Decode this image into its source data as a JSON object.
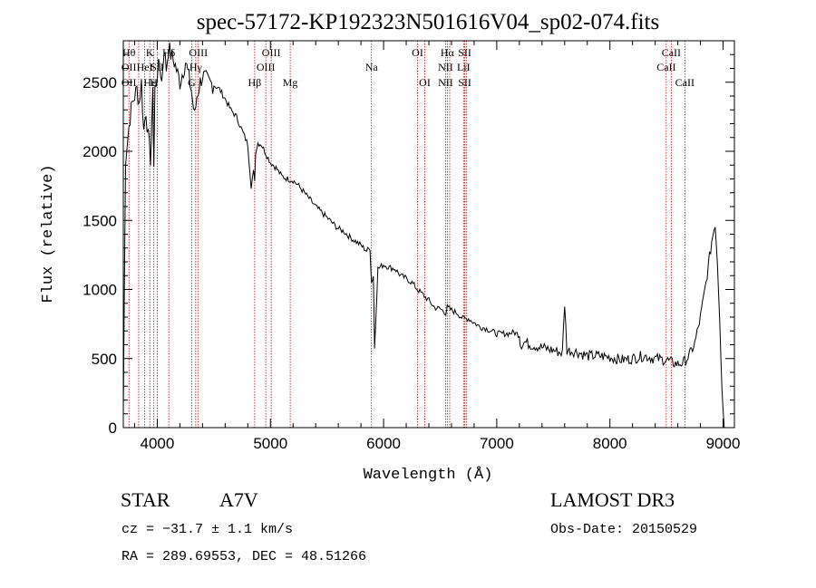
{
  "chart_data": {
    "type": "line",
    "title": "spec-57172-KP192323N501616V04_sp02-074.fits",
    "xlabel": "Wavelength (Å)",
    "ylabel": "Flux (relative)",
    "xlim": [
      3700,
      9100
    ],
    "ylim": [
      0,
      2800
    ],
    "xticks": [
      4000,
      5000,
      6000,
      7000,
      8000,
      9000
    ],
    "yticks": [
      0,
      500,
      1000,
      1500,
      2000,
      2500
    ],
    "series": [
      {
        "name": "spectrum",
        "x": [
          3700,
          3720,
          3740,
          3760,
          3780,
          3800,
          3820,
          3840,
          3860,
          3880,
          3900,
          3920,
          3940,
          3960,
          3970,
          3980,
          4000,
          4020,
          4040,
          4060,
          4080,
          4100,
          4120,
          4150,
          4200,
          4250,
          4300,
          4330,
          4350,
          4380,
          4400,
          4450,
          4500,
          4550,
          4600,
          4650,
          4700,
          4750,
          4800,
          4830,
          4850,
          4861,
          4870,
          4890,
          4920,
          4950,
          5000,
          5050,
          5100,
          5150,
          5200,
          5250,
          5300,
          5350,
          5400,
          5450,
          5500,
          5550,
          5600,
          5650,
          5700,
          5750,
          5800,
          5850,
          5880,
          5893,
          5910,
          5920,
          5950,
          6000,
          6050,
          6100,
          6150,
          6200,
          6250,
          6300,
          6350,
          6400,
          6450,
          6500,
          6550,
          6563,
          6600,
          6650,
          6700,
          6750,
          6800,
          6850,
          6900,
          6950,
          7000,
          7050,
          7100,
          7150,
          7200,
          7210,
          7250,
          7300,
          7400,
          7500,
          7580,
          7600,
          7620,
          7700,
          7800,
          7900,
          8000,
          8100,
          8200,
          8300,
          8400,
          8500,
          8550,
          8600,
          8650,
          8700,
          8750,
          8800,
          8850,
          8900,
          8930,
          8950,
          8970,
          8990,
          9010,
          9030
        ],
        "y": [
          100,
          1950,
          2100,
          2250,
          2350,
          2400,
          2450,
          2350,
          2500,
          2150,
          2300,
          2100,
          1950,
          2400,
          1900,
          2450,
          2550,
          2650,
          2500,
          2750,
          2600,
          2750,
          2700,
          2650,
          2500,
          2650,
          2450,
          2250,
          2400,
          2500,
          2550,
          2500,
          2480,
          2450,
          2380,
          2300,
          2250,
          2150,
          2050,
          1750,
          1850,
          1800,
          2000,
          2060,
          2050,
          2000,
          1920,
          1880,
          1820,
          1800,
          1790,
          1750,
          1700,
          1650,
          1600,
          1560,
          1520,
          1480,
          1440,
          1420,
          1380,
          1350,
          1320,
          1280,
          1300,
          1050,
          1100,
          580,
          1150,
          1180,
          1160,
          1150,
          1100,
          1080,
          1050,
          1000,
          960,
          920,
          870,
          860,
          830,
          870,
          850,
          830,
          790,
          790,
          760,
          730,
          720,
          700,
          680,
          680,
          680,
          690,
          670,
          600,
          620,
          600,
          580,
          560,
          540,
          900,
          560,
          550,
          520,
          520,
          510,
          490,
          500,
          520,
          500,
          490,
          470,
          460,
          470,
          520,
          610,
          800,
          1050,
          1350,
          1480,
          1200,
          800,
          300,
          0,
          0
        ]
      }
    ],
    "lines": [
      {
        "w": 3750,
        "labels": [
          [
            "Hθ",
            1
          ],
          [
            "OII",
            2
          ],
          [
            "OII",
            3
          ]
        ]
      },
      {
        "w": 3836
      },
      {
        "w": 3889,
        "labels": [
          [
            "HeI",
            2
          ]
        ]
      },
      {
        "w": 3934,
        "labels": [
          [
            "K",
            1
          ],
          [
            "Hε",
            3
          ]
        ]
      },
      {
        "w": 3970,
        "labels": [
          [
            "H",
            3
          ]
        ]
      },
      {
        "w": 4000,
        "labels": [
          [
            "SII",
            2
          ]
        ]
      },
      {
        "w": 4102,
        "labels": [
          [
            "Hδ",
            1
          ]
        ]
      },
      {
        "w": 4304,
        "labels": [
          [
            "G",
            3
          ]
        ]
      },
      {
        "w": 4340,
        "labels": [
          [
            "Hγ",
            2
          ]
        ]
      },
      {
        "w": 4363,
        "labels": [
          [
            "OIII",
            1
          ]
        ]
      },
      {
        "w": 4861,
        "labels": [
          [
            "Hβ",
            3
          ]
        ]
      },
      {
        "w": 4959,
        "labels": [
          [
            "OIII",
            2
          ]
        ]
      },
      {
        "w": 5007,
        "labels": [
          [
            "OIII",
            1
          ]
        ]
      },
      {
        "w": 5175,
        "labels": [
          [
            "Mg",
            3
          ]
        ]
      },
      {
        "w": 5893,
        "labels": [
          [
            "Na",
            2
          ]
        ]
      },
      {
        "w": 6300,
        "labels": [
          [
            "OI",
            1
          ]
        ]
      },
      {
        "w": 6364,
        "labels": [
          [
            "OI",
            3
          ]
        ]
      },
      {
        "w": 6548,
        "labels": [
          [
            "NII",
            2
          ],
          [
            "NII",
            3
          ]
        ]
      },
      {
        "w": 6563,
        "labels": [
          [
            "Hα",
            1
          ]
        ]
      },
      {
        "w": 6584
      },
      {
        "w": 6707,
        "labels": [
          [
            "LiI",
            2
          ]
        ]
      },
      {
        "w": 6717,
        "labels": [
          [
            "SII",
            1
          ],
          [
            "SII",
            3
          ]
        ]
      },
      {
        "w": 6731
      },
      {
        "w": 8498,
        "labels": [
          [
            "CaII",
            2
          ]
        ]
      },
      {
        "w": 8542,
        "labels": [
          [
            "CaII",
            1
          ]
        ]
      },
      {
        "w": 8662,
        "labels": [
          [
            "CaII",
            3
          ]
        ]
      }
    ]
  },
  "info": {
    "class": "STAR",
    "subclass": "A7V",
    "survey": "LAMOST DR3",
    "cz": "cz = −31.7 ± 1.1 km/s",
    "obs_date": "Obs-Date: 20150529",
    "coords": "RA = 289.69553, DEC =  48.51266"
  },
  "colors": {
    "spectrum": "#000000",
    "lines": "#cc0000",
    "axes": "#000000"
  }
}
